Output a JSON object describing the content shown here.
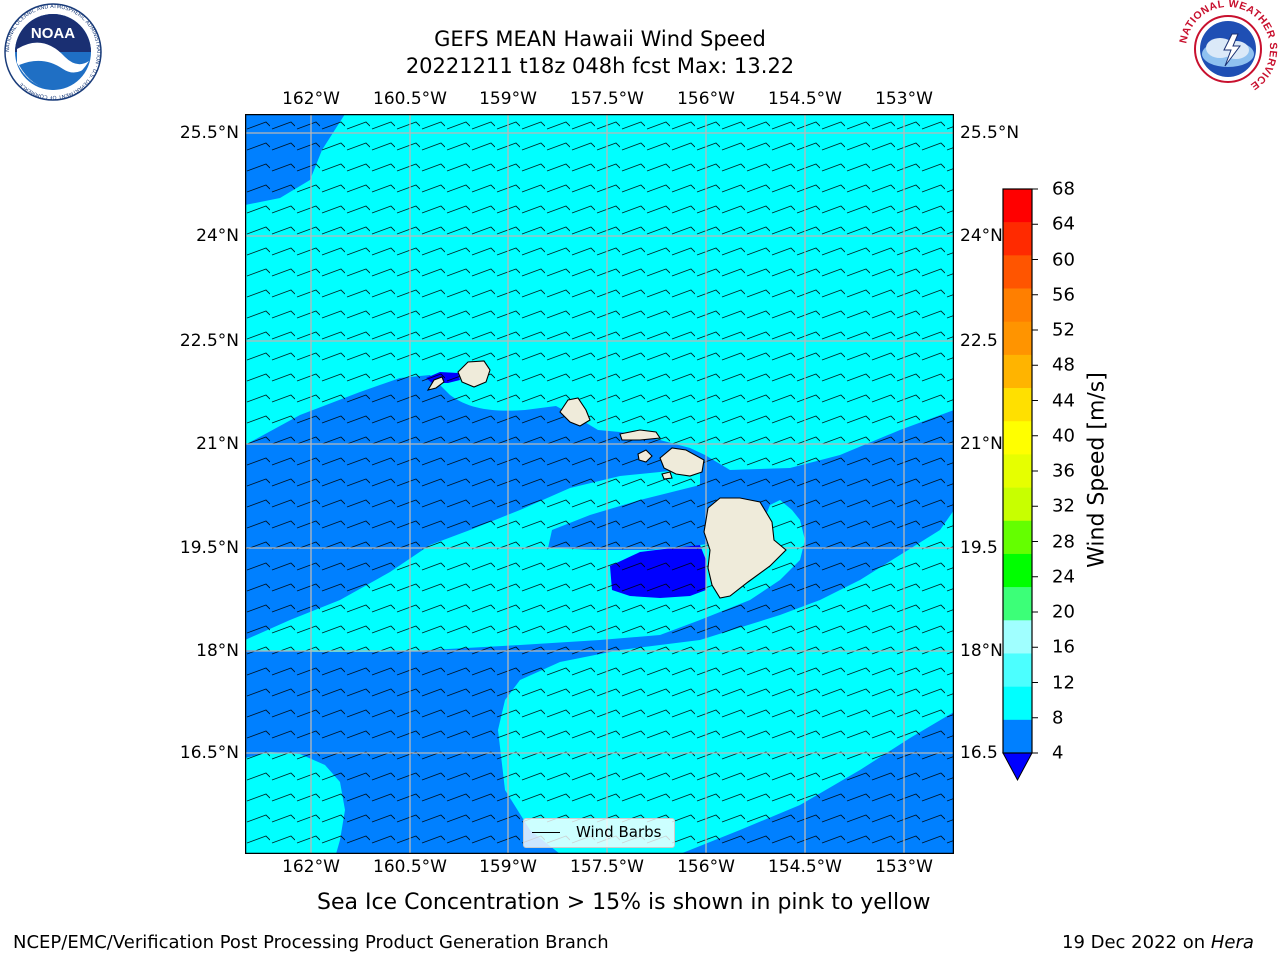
{
  "title": {
    "line1": "GEFS MEAN Hawaii Wind Speed",
    "line2": "20221211 t18z 048h fcst   Max: 13.22"
  },
  "map": {
    "lon_labels": [
      "162°W",
      "160.5°W",
      "159°W",
      "157.5°W",
      "156°W",
      "154.5°W",
      "153°W"
    ],
    "lat_labels": [
      "25.5°N",
      "24°N",
      "22.5°N",
      "21°N",
      "19.5°N",
      "18°N",
      "16.5°N"
    ],
    "right_lat_labels": [
      "25.5°N",
      "24°N",
      "22.5",
      "21°N",
      "19.5",
      "18°N",
      "16.5"
    ],
    "lon_range": [
      "163°W",
      "152.2°W"
    ],
    "lat_range": [
      "15.2°N",
      "25.8°N"
    ],
    "gridlines": true,
    "fill_colors": {
      "4_to_8": "#0080ff",
      "8_to_12": "#00ffff",
      "below_4": "#0000ff",
      "land": "#efebda"
    },
    "islands": [
      "Niihau",
      "Kauai",
      "Oahu",
      "Molokai",
      "Lanai",
      "Maui",
      "Kahoolawe",
      "Hawaii"
    ]
  },
  "legend": {
    "label": "Wind Barbs",
    "position": "bottom-center"
  },
  "colorbar": {
    "label": "Wind Speed [m/s]",
    "ticks": [
      "68",
      "64",
      "60",
      "56",
      "52",
      "48",
      "44",
      "40",
      "36",
      "32",
      "28",
      "24",
      "20",
      "16",
      "12",
      "8",
      "4"
    ],
    "colors": [
      "#ff0000",
      "#ff2a00",
      "#ff5500",
      "#ff7f00",
      "#ff9400",
      "#ffb400",
      "#ffe000",
      "#ffff00",
      "#e6ff00",
      "#c8ff00",
      "#64ff00",
      "#00ff00",
      "#3cff78",
      "#a0ffff",
      "#4cffff",
      "#00ffff",
      "#0080ff"
    ],
    "under_color": "#0000ff"
  },
  "note": "Sea Ice Concentration > 15% is shown in pink to yellow",
  "footer": {
    "left": "NCEP/EMC/Verification Post Processing Product Generation Branch",
    "date": "19 Dec 2022 on ",
    "host": "Hera"
  },
  "logos": {
    "noaa_text": "NOAA",
    "noaa_ring": "NATIONAL OCEANIC AND ATMOSPHERIC ADMINISTRATION · U.S. DEPARTMENT OF COMMERCE",
    "nws_ring": "NATIONAL WEATHER SERVICE"
  }
}
